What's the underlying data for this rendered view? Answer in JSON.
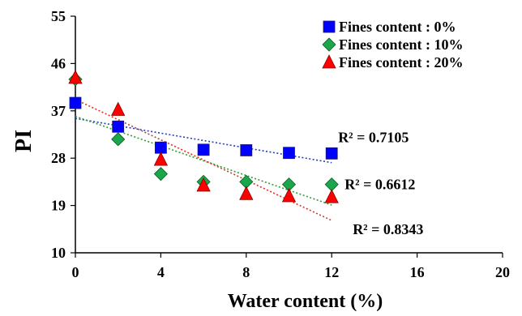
{
  "chart_data": {
    "type": "scatter",
    "xlabel": "Water content (%)",
    "ylabel": "PI",
    "xlim": [
      0,
      20
    ],
    "ylim": [
      10,
      55
    ],
    "x_ticks": [
      0,
      4,
      8,
      12,
      16,
      20
    ],
    "y_ticks": [
      10,
      19,
      28,
      37,
      46,
      55
    ],
    "grid": false,
    "legend_position": "top-right",
    "series": [
      {
        "name": "Fines content : 0%",
        "marker": "square",
        "color": "#0000ff",
        "trendline_color": "#1f3fbf",
        "x": [
          0,
          2,
          4,
          6,
          8,
          10,
          12
        ],
        "y": [
          38.5,
          34,
          30,
          29.6,
          29.5,
          29,
          28.9
        ],
        "r2_label": "R² = 0.7105"
      },
      {
        "name": "Fines content : 10%",
        "marker": "diamond",
        "color": "#1aa64a",
        "trendline_color": "#2ca02c",
        "x": [
          0,
          2,
          4,
          6,
          8,
          10,
          12
        ],
        "y": [
          43,
          31.6,
          25,
          23.5,
          23.5,
          23,
          23
        ],
        "r2_label": "R² = 0.6612"
      },
      {
        "name": "Fines content : 20%",
        "marker": "triangle",
        "color": "#ff0000",
        "trendline_color": "#e03020",
        "x": [
          0,
          2,
          4,
          6,
          8,
          10,
          12
        ],
        "y": [
          43.3,
          37.2,
          27.7,
          22.8,
          21.2,
          20.8,
          20.6
        ],
        "r2_label": "R² = 0.8343"
      }
    ]
  }
}
